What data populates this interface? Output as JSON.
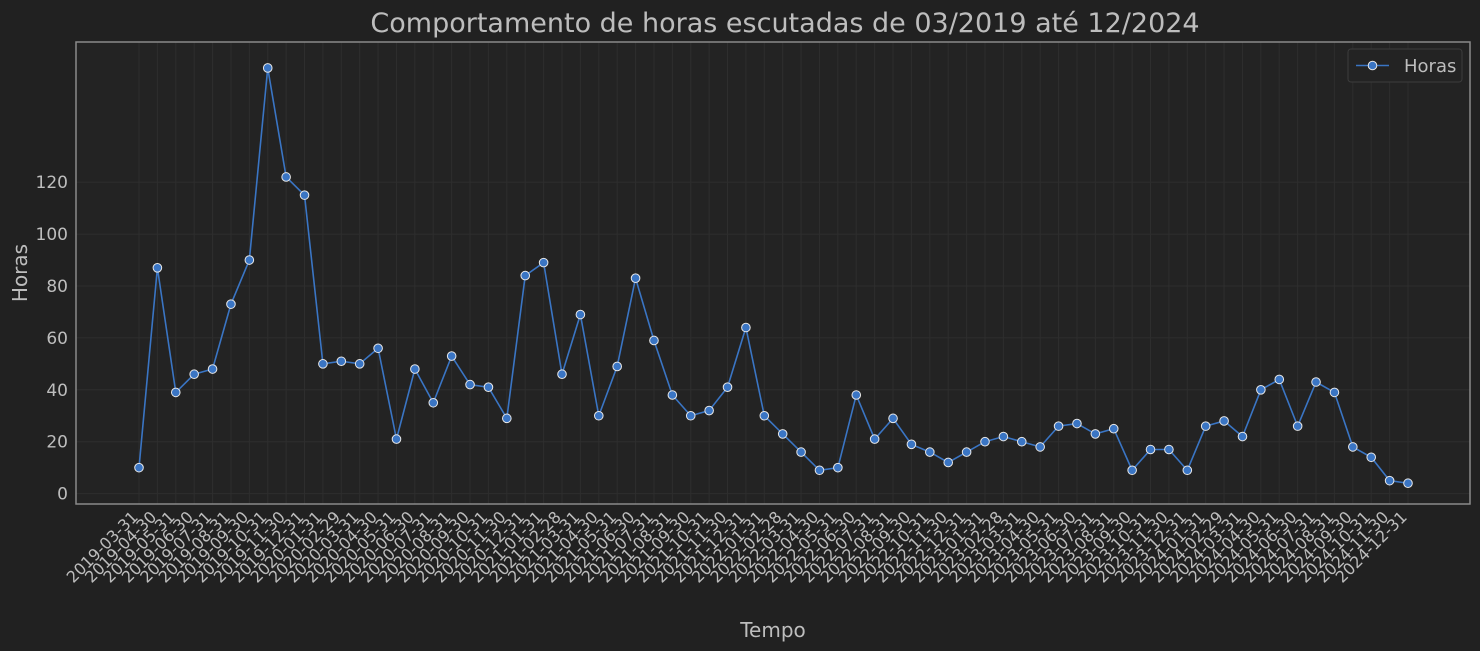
{
  "theme": {
    "background": "#212121",
    "plot_background": "#232323",
    "text": "#bdbdbd",
    "grid": "#2e2e2e",
    "spine": "#8a8a8a",
    "series_color": "#3a75c4"
  },
  "chart_data": {
    "type": "line",
    "title": "Comportamento de horas escutadas de 03/2019 até 12/2024",
    "xlabel": "Tempo",
    "ylabel": "Horas",
    "ylim": [
      -4,
      174
    ],
    "yticks": [
      0,
      20,
      40,
      60,
      80,
      100,
      120
    ],
    "grid": true,
    "legend_position": "top-right",
    "x": [
      "2019-03-31",
      "2019-04-30",
      "2019-05-31",
      "2019-06-30",
      "2019-07-31",
      "2019-08-31",
      "2019-09-30",
      "2019-10-31",
      "2019-11-30",
      "2019-12-31",
      "2020-01-31",
      "2020-02-29",
      "2020-03-31",
      "2020-04-30",
      "2020-05-31",
      "2020-06-30",
      "2020-07-31",
      "2020-08-31",
      "2020-09-30",
      "2020-10-31",
      "2020-11-30",
      "2020-12-31",
      "2021-01-31",
      "2021-02-28",
      "2021-03-31",
      "2021-04-30",
      "2021-05-31",
      "2021-06-30",
      "2021-07-31",
      "2021-08-31",
      "2021-09-30",
      "2021-10-31",
      "2021-11-30",
      "2021-12-31",
      "2022-01-31",
      "2022-02-28",
      "2022-03-31",
      "2022-04-30",
      "2022-05-31",
      "2022-06-30",
      "2022-07-31",
      "2022-08-31",
      "2022-09-30",
      "2022-10-31",
      "2022-11-30",
      "2022-12-31",
      "2023-01-31",
      "2023-02-28",
      "2023-03-31",
      "2023-04-30",
      "2023-05-31",
      "2023-06-30",
      "2023-07-31",
      "2023-08-31",
      "2023-09-30",
      "2023-10-31",
      "2023-11-30",
      "2023-12-31",
      "2024-01-31",
      "2024-02-29",
      "2024-03-31",
      "2024-04-30",
      "2024-05-31",
      "2024-06-30",
      "2024-07-31",
      "2024-08-31",
      "2024-09-30",
      "2024-10-31",
      "2024-11-30",
      "2024-12-31"
    ],
    "series": [
      {
        "name": "Horas",
        "values": [
          10,
          87,
          39,
          46,
          48,
          73,
          90,
          164,
          122,
          115,
          50,
          51,
          50,
          56,
          21,
          48,
          35,
          53,
          42,
          41,
          29,
          84,
          89,
          46,
          69,
          30,
          49,
          83,
          59,
          38,
          30,
          32,
          41,
          64,
          30,
          23,
          16,
          9,
          10,
          38,
          21,
          29,
          19,
          16,
          12,
          16,
          20,
          22,
          20,
          18,
          26,
          27,
          23,
          25,
          9,
          17,
          17,
          9,
          26,
          28,
          22,
          40,
          44,
          26,
          43,
          39,
          18,
          14,
          5,
          4
        ]
      }
    ]
  }
}
